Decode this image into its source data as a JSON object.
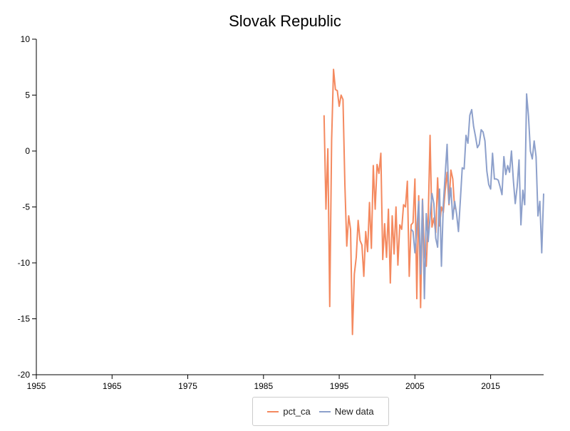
{
  "chart_data": {
    "type": "line",
    "title": "Slovak Republic",
    "xlabel": "",
    "ylabel": "",
    "xlim": [
      1955,
      2022
    ],
    "ylim": [
      -20,
      10
    ],
    "x_ticks": [
      1955,
      1965,
      1975,
      1985,
      1995,
      2005,
      2015
    ],
    "y_ticks": [
      10,
      5,
      0,
      -5,
      -10,
      -15,
      -20
    ],
    "grid": false,
    "legend_position": "bottom-center",
    "series": [
      {
        "name": "pct_ca",
        "color": "#f4895f",
        "points": [
          [
            1993.0,
            3.2
          ],
          [
            1993.25,
            -5.2
          ],
          [
            1993.5,
            0.2
          ],
          [
            1993.75,
            -13.9
          ],
          [
            1994.0,
            1.0
          ],
          [
            1994.25,
            7.3
          ],
          [
            1994.5,
            5.5
          ],
          [
            1994.75,
            5.4
          ],
          [
            1995.0,
            4.0
          ],
          [
            1995.25,
            5.0
          ],
          [
            1995.5,
            4.6
          ],
          [
            1995.75,
            -3.0
          ],
          [
            1996.0,
            -8.5
          ],
          [
            1996.25,
            -5.8
          ],
          [
            1996.5,
            -7.0
          ],
          [
            1996.75,
            -16.4
          ],
          [
            1997.0,
            -11.0
          ],
          [
            1997.25,
            -9.5
          ],
          [
            1997.5,
            -6.2
          ],
          [
            1997.75,
            -8.0
          ],
          [
            1998.0,
            -8.4
          ],
          [
            1998.25,
            -11.2
          ],
          [
            1998.5,
            -7.2
          ],
          [
            1998.75,
            -9.0
          ],
          [
            1999.0,
            -4.6
          ],
          [
            1999.25,
            -8.7
          ],
          [
            1999.5,
            -1.3
          ],
          [
            1999.75,
            -5.2
          ],
          [
            2000.0,
            -1.2
          ],
          [
            2000.25,
            -2.0
          ],
          [
            2000.5,
            -0.2
          ],
          [
            2000.75,
            -9.7
          ],
          [
            2001.0,
            -6.5
          ],
          [
            2001.25,
            -9.5
          ],
          [
            2001.5,
            -5.2
          ],
          [
            2001.75,
            -11.8
          ],
          [
            2002.0,
            -5.8
          ],
          [
            2002.25,
            -9.2
          ],
          [
            2002.5,
            -5.0
          ],
          [
            2002.75,
            -10.2
          ],
          [
            2003.0,
            -6.6
          ],
          [
            2003.25,
            -7.0
          ],
          [
            2003.5,
            -4.8
          ],
          [
            2003.75,
            -5.0
          ],
          [
            2004.0,
            -2.7
          ],
          [
            2004.25,
            -11.2
          ],
          [
            2004.5,
            -6.6
          ],
          [
            2004.75,
            -6.4
          ],
          [
            2005.0,
            -2.5
          ],
          [
            2005.25,
            -13.2
          ],
          [
            2005.5,
            -4.0
          ],
          [
            2005.75,
            -14.0
          ],
          [
            2006.0,
            -4.3
          ],
          [
            2006.25,
            -9.1
          ],
          [
            2006.5,
            -10.3
          ],
          [
            2006.75,
            -6.2
          ],
          [
            2007.0,
            1.4
          ],
          [
            2007.25,
            -6.8
          ],
          [
            2007.5,
            -6.0
          ],
          [
            2007.75,
            -7.3
          ],
          [
            2008.0,
            -2.4
          ],
          [
            2008.25,
            -6.7
          ],
          [
            2008.5,
            -5.0
          ],
          [
            2008.75,
            -5.5
          ],
          [
            2009.0,
            -3.5
          ],
          [
            2009.25,
            -1.9
          ],
          [
            2009.5,
            -4.8
          ],
          [
            2009.75,
            -1.7
          ],
          [
            2010.0,
            -2.5
          ],
          [
            2010.25,
            -5.2
          ]
        ]
      },
      {
        "name": "New data",
        "color": "#8da0cb",
        "points": [
          [
            2004.5,
            -7.0
          ],
          [
            2004.75,
            -7.2
          ],
          [
            2005.0,
            -9.1
          ],
          [
            2005.25,
            -7.0
          ],
          [
            2005.5,
            -4.5
          ],
          [
            2005.75,
            -11.0
          ],
          [
            2006.0,
            -4.4
          ],
          [
            2006.25,
            -13.2
          ],
          [
            2006.5,
            -5.6
          ],
          [
            2006.75,
            -8.1
          ],
          [
            2007.0,
            -5.9
          ],
          [
            2007.25,
            -3.8
          ],
          [
            2007.5,
            -4.7
          ],
          [
            2007.75,
            -7.8
          ],
          [
            2008.0,
            -8.6
          ],
          [
            2008.25,
            -3.4
          ],
          [
            2008.5,
            -10.3
          ],
          [
            2008.75,
            -4.8
          ],
          [
            2009.0,
            -2.1
          ],
          [
            2009.25,
            0.6
          ],
          [
            2009.5,
            -4.7
          ],
          [
            2009.75,
            -3.3
          ],
          [
            2010.0,
            -6.1
          ],
          [
            2010.25,
            -4.5
          ],
          [
            2010.5,
            -5.6
          ],
          [
            2010.75,
            -7.2
          ],
          [
            2011.0,
            -4.4
          ],
          [
            2011.25,
            -1.5
          ],
          [
            2011.5,
            -1.6
          ],
          [
            2011.75,
            1.4
          ],
          [
            2012.0,
            0.7
          ],
          [
            2012.25,
            3.2
          ],
          [
            2012.5,
            3.7
          ],
          [
            2012.75,
            2.2
          ],
          [
            2013.0,
            1.3
          ],
          [
            2013.25,
            0.3
          ],
          [
            2013.5,
            0.6
          ],
          [
            2013.75,
            1.9
          ],
          [
            2014.0,
            1.7
          ],
          [
            2014.25,
            0.9
          ],
          [
            2014.5,
            -1.8
          ],
          [
            2014.75,
            -3.0
          ],
          [
            2015.0,
            -3.4
          ],
          [
            2015.25,
            -0.2
          ],
          [
            2015.5,
            -2.5
          ],
          [
            2015.75,
            -2.5
          ],
          [
            2016.0,
            -2.6
          ],
          [
            2016.25,
            -3.2
          ],
          [
            2016.5,
            -3.9
          ],
          [
            2016.75,
            -0.5
          ],
          [
            2017.0,
            -2.1
          ],
          [
            2017.25,
            -1.3
          ],
          [
            2017.5,
            -1.9
          ],
          [
            2017.75,
            0.0
          ],
          [
            2018.0,
            -2.6
          ],
          [
            2018.25,
            -4.7
          ],
          [
            2018.5,
            -3.2
          ],
          [
            2018.75,
            -0.8
          ],
          [
            2019.0,
            -6.6
          ],
          [
            2019.25,
            -3.5
          ],
          [
            2019.5,
            -4.8
          ],
          [
            2019.75,
            5.1
          ],
          [
            2020.0,
            3.1
          ],
          [
            2020.25,
            0.0
          ],
          [
            2020.5,
            -0.7
          ],
          [
            2020.75,
            0.9
          ],
          [
            2021.0,
            -0.5
          ],
          [
            2021.25,
            -5.8
          ],
          [
            2021.5,
            -4.5
          ],
          [
            2021.75,
            -9.1
          ],
          [
            2022.0,
            -3.8
          ]
        ]
      }
    ]
  }
}
